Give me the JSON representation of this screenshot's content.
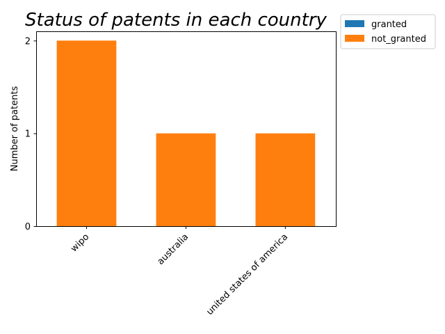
{
  "chart_data": {
    "type": "bar",
    "stacked": true,
    "title": "Status of patents in each country",
    "xlabel": "",
    "ylabel": "Number of patents",
    "categories": [
      "wipo",
      "australia",
      "united states of america"
    ],
    "series": [
      {
        "name": "granted",
        "values": [
          0,
          0,
          0
        ],
        "color": "#1f77b4"
      },
      {
        "name": "not_granted",
        "values": [
          2,
          1,
          1
        ],
        "color": "#ff7f0e"
      }
    ],
    "ylim": [
      0,
      2.1
    ],
    "yticks": [
      0,
      1,
      2
    ],
    "grid": false,
    "legend_position": "outside-top-right"
  }
}
